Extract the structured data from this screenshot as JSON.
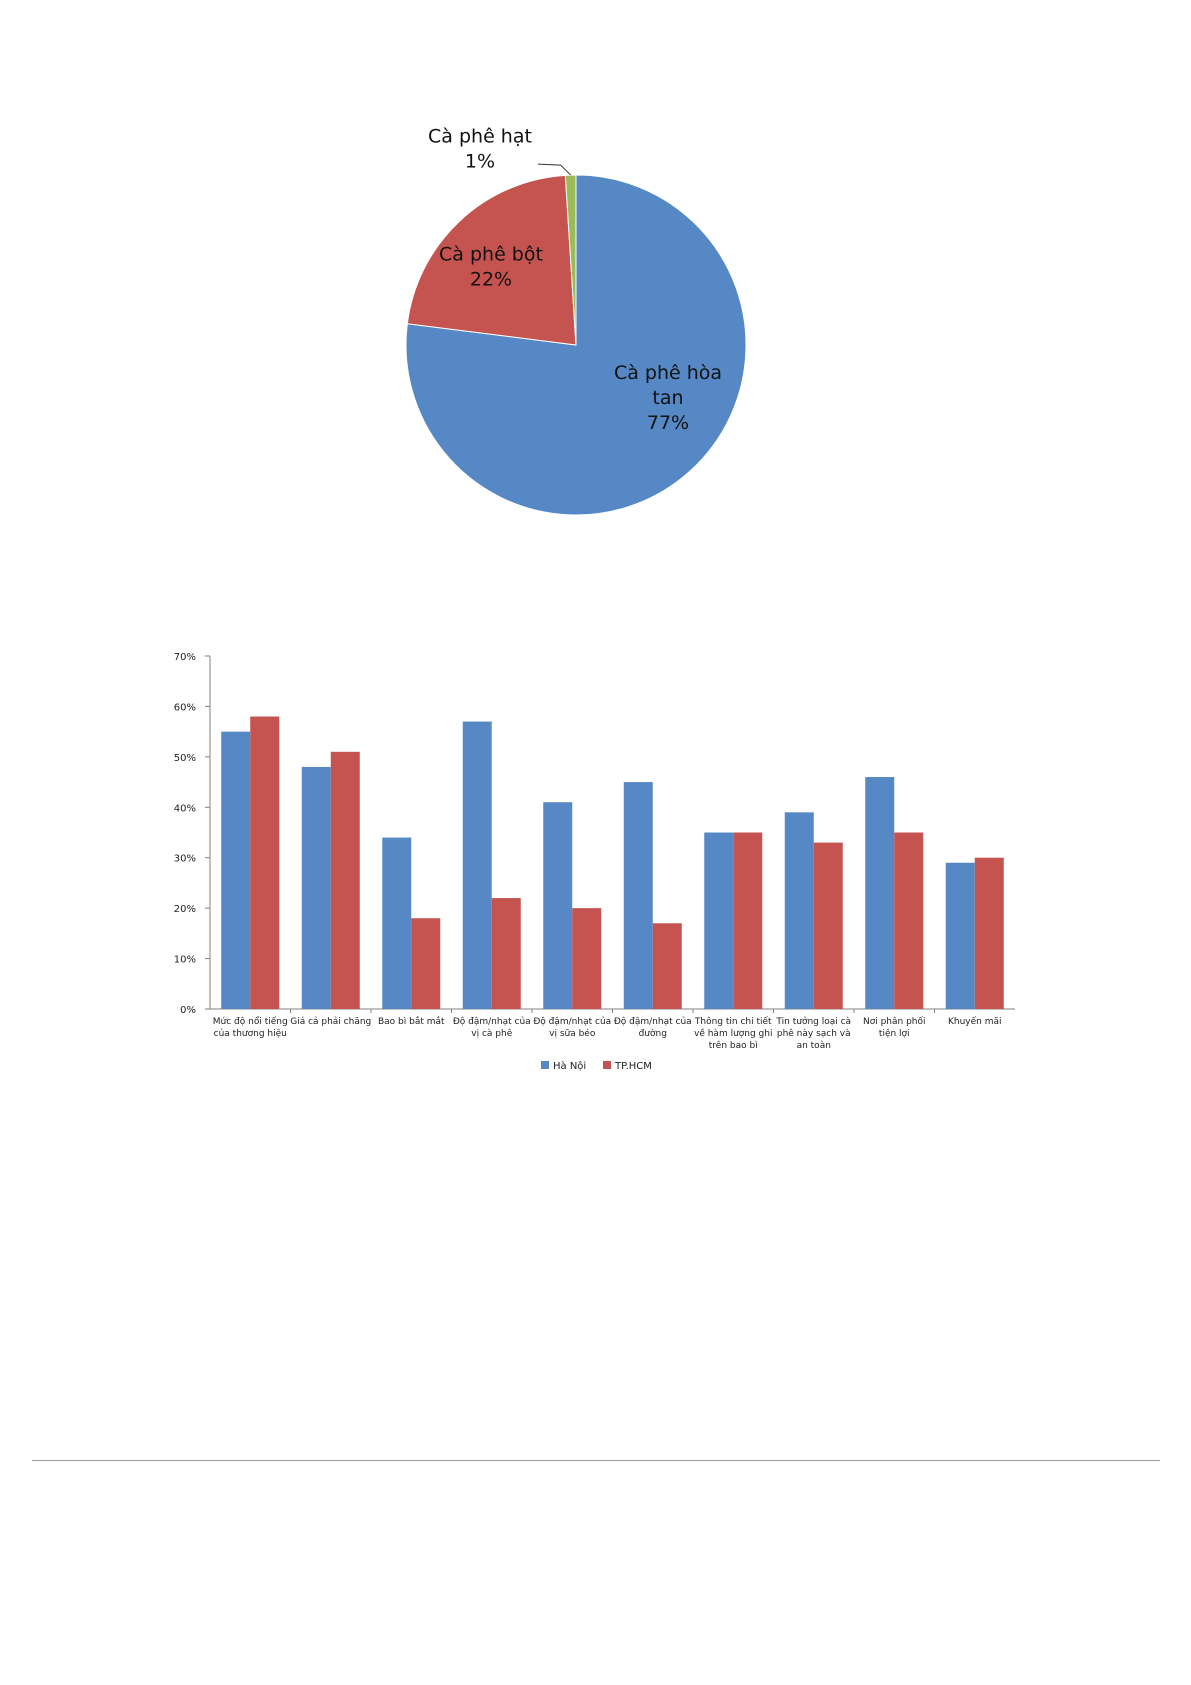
{
  "chart_data": [
    {
      "type": "pie",
      "slices": [
        {
          "label_lines": [
            "Cà phê hòa",
            "tan"
          ],
          "percent_text": "77%",
          "value": 77,
          "color": "#5588c4"
        },
        {
          "label_lines": [
            "Cà phê bột"
          ],
          "percent_text": "22%",
          "value": 22,
          "color": "#c55450"
        },
        {
          "label_lines": [
            "Cà phê hạt"
          ],
          "percent_text": "1%",
          "value": 1,
          "color": "#9bbb59"
        }
      ]
    },
    {
      "type": "bar",
      "categories": [
        [
          "Mức độ nổi tiếng",
          "của thương hiệu"
        ],
        [
          "Giá cả phải chăng"
        ],
        [
          "Bao bì bắt mắt"
        ],
        [
          "Độ đậm/nhạt của",
          "vị cà phê"
        ],
        [
          "Độ đậm/nhạt của",
          "vị sữa béo"
        ],
        [
          "Độ đậm/nhạt của",
          "đường"
        ],
        [
          "Thông tin chi tiết",
          "về hàm lượng ghi",
          "trên bao bì"
        ],
        [
          "Tin tưởng loại cà",
          "phê này sạch và",
          "an toàn"
        ],
        [
          "Nơi phân phối",
          "tiện lợi"
        ],
        [
          "Khuyến mãi"
        ]
      ],
      "series": [
        {
          "name": "Hà Nội",
          "color": "#5588c4",
          "values": [
            55,
            48,
            34,
            57,
            41,
            45,
            35,
            39,
            46,
            29
          ]
        },
        {
          "name": "TP.HCM",
          "color": "#c55450",
          "values": [
            58,
            51,
            18,
            22,
            20,
            17,
            35,
            33,
            35,
            30
          ]
        }
      ],
      "y_ticks": [
        "0%",
        "10%",
        "20%",
        "30%",
        "40%",
        "50%",
        "60%",
        "70%"
      ],
      "ylim": [
        0,
        70
      ],
      "legend": "bottom",
      "grid": false
    }
  ]
}
